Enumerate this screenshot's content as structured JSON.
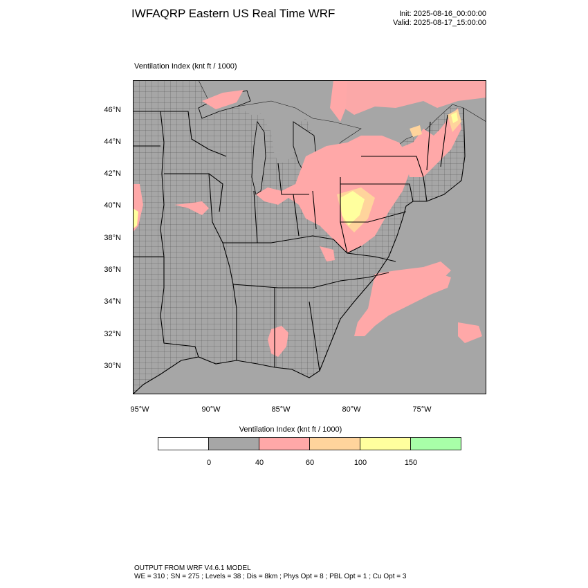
{
  "header": {
    "title": "IWFAQRP Eastern US Real Time WRF",
    "init": "Init: 2025-08-16_00:00:00",
    "valid": "Valid: 2025-08-17_15:00:00"
  },
  "map": {
    "field_label": "Ventilation Index   (knt ft / 1000)",
    "lat_labels": [
      "46°N",
      "44°N",
      "42°N",
      "40°N",
      "38°N",
      "36°N",
      "34°N",
      "32°N",
      "30°N"
    ],
    "lon_labels": [
      "95°W",
      "90°W",
      "85°W",
      "80°W",
      "75°W"
    ],
    "colors": {
      "land": "#a6a6a6",
      "water": "#a6a6a6",
      "band_40_60": "#ffa8a8",
      "band_60_100": "#ffd49c",
      "band_100_150": "#ffff9e",
      "band_150_plus": "#a8ffa8"
    }
  },
  "colorbar": {
    "title": "Ventilation Index  (knt ft / 1000)",
    "colors": [
      "#ffffff",
      "#a6a6a6",
      "#ffa8a8",
      "#ffd49c",
      "#ffff9e",
      "#a8ffa8"
    ],
    "labels": [
      "0",
      "40",
      "60",
      "100",
      "150"
    ]
  },
  "footer": {
    "line1": "OUTPUT FROM WRF V4.6.1 MODEL",
    "line2": "WE = 310 ; SN = 275 ; Levels = 38 ; Dis = 8km ; Phys Opt = 8 ; PBL Opt = 1 ; Cu Opt = 3"
  }
}
